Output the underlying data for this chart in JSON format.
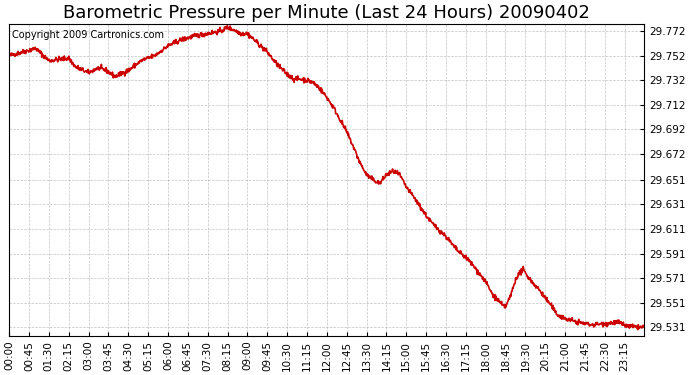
{
  "title": "Barometric Pressure per Minute (Last 24 Hours) 20090402",
  "copyright": "Copyright 2009 Cartronics.com",
  "line_color": "#cc0000",
  "background_color": "#ffffff",
  "grid_color": "#aaaaaa",
  "yticks": [
    29.531,
    29.551,
    29.571,
    29.591,
    29.611,
    29.631,
    29.651,
    29.672,
    29.692,
    29.712,
    29.732,
    29.752,
    29.772
  ],
  "xtick_labels": [
    "00:00",
    "00:45",
    "01:30",
    "02:15",
    "03:00",
    "03:45",
    "04:30",
    "05:15",
    "06:00",
    "06:45",
    "07:30",
    "08:15",
    "09:00",
    "09:45",
    "10:30",
    "11:15",
    "12:00",
    "12:45",
    "13:30",
    "14:15",
    "15:00",
    "15:45",
    "16:30",
    "17:15",
    "18:00",
    "18:45",
    "19:30",
    "20:15",
    "21:00",
    "21:45",
    "22:30",
    "23:15"
  ],
  "xtick_positions": [
    0,
    45,
    90,
    135,
    180,
    225,
    270,
    315,
    360,
    405,
    450,
    495,
    540,
    585,
    630,
    675,
    720,
    765,
    810,
    855,
    900,
    945,
    990,
    1035,
    1080,
    1125,
    1170,
    1215,
    1260,
    1305,
    1350,
    1395
  ],
  "title_fontsize": 13,
  "copyright_fontsize": 7,
  "tick_fontsize": 7.5,
  "line_width": 1.2,
  "waypoints_x": [
    0,
    30,
    60,
    90,
    135,
    150,
    180,
    200,
    220,
    240,
    270,
    300,
    330,
    360,
    390,
    420,
    450,
    480,
    495,
    510,
    525,
    540,
    555,
    570,
    585,
    600,
    615,
    630,
    645,
    660,
    675,
    690,
    705,
    720,
    735,
    750,
    765,
    780,
    795,
    810,
    825,
    840,
    855,
    870,
    885,
    900,
    915,
    930,
    945,
    960,
    975,
    990,
    1005,
    1020,
    1035,
    1050,
    1065,
    1080,
    1095,
    1110,
    1120,
    1125,
    1135,
    1150,
    1165,
    1170,
    1185,
    1200,
    1215,
    1230,
    1240,
    1260,
    1290,
    1320,
    1380,
    1400,
    1420,
    1440
  ],
  "waypoints_y": [
    29.752,
    29.755,
    29.758,
    29.748,
    29.75,
    29.743,
    29.738,
    29.742,
    29.74,
    29.735,
    29.74,
    29.748,
    29.752,
    29.76,
    29.765,
    29.768,
    29.77,
    29.772,
    29.775,
    29.773,
    29.77,
    29.77,
    29.765,
    29.76,
    29.755,
    29.748,
    29.742,
    29.737,
    29.733,
    29.733,
    29.732,
    29.73,
    29.725,
    29.718,
    29.71,
    29.7,
    29.69,
    29.678,
    29.665,
    29.655,
    29.651,
    29.648,
    29.655,
    29.658,
    29.655,
    29.645,
    29.638,
    29.63,
    29.622,
    29.615,
    29.61,
    29.605,
    29.598,
    29.592,
    29.588,
    29.582,
    29.575,
    29.568,
    29.558,
    29.552,
    29.548,
    29.548,
    29.555,
    29.572,
    29.578,
    29.575,
    29.568,
    29.562,
    29.555,
    29.548,
    29.542,
    29.538,
    29.535,
    29.533,
    29.535,
    29.532,
    29.531,
    29.531
  ],
  "noise_seed": 42,
  "noise_std": 0.001,
  "ylim_low": 29.524,
  "ylim_high": 29.778,
  "xlim_low": 0,
  "xlim_high": 1440
}
